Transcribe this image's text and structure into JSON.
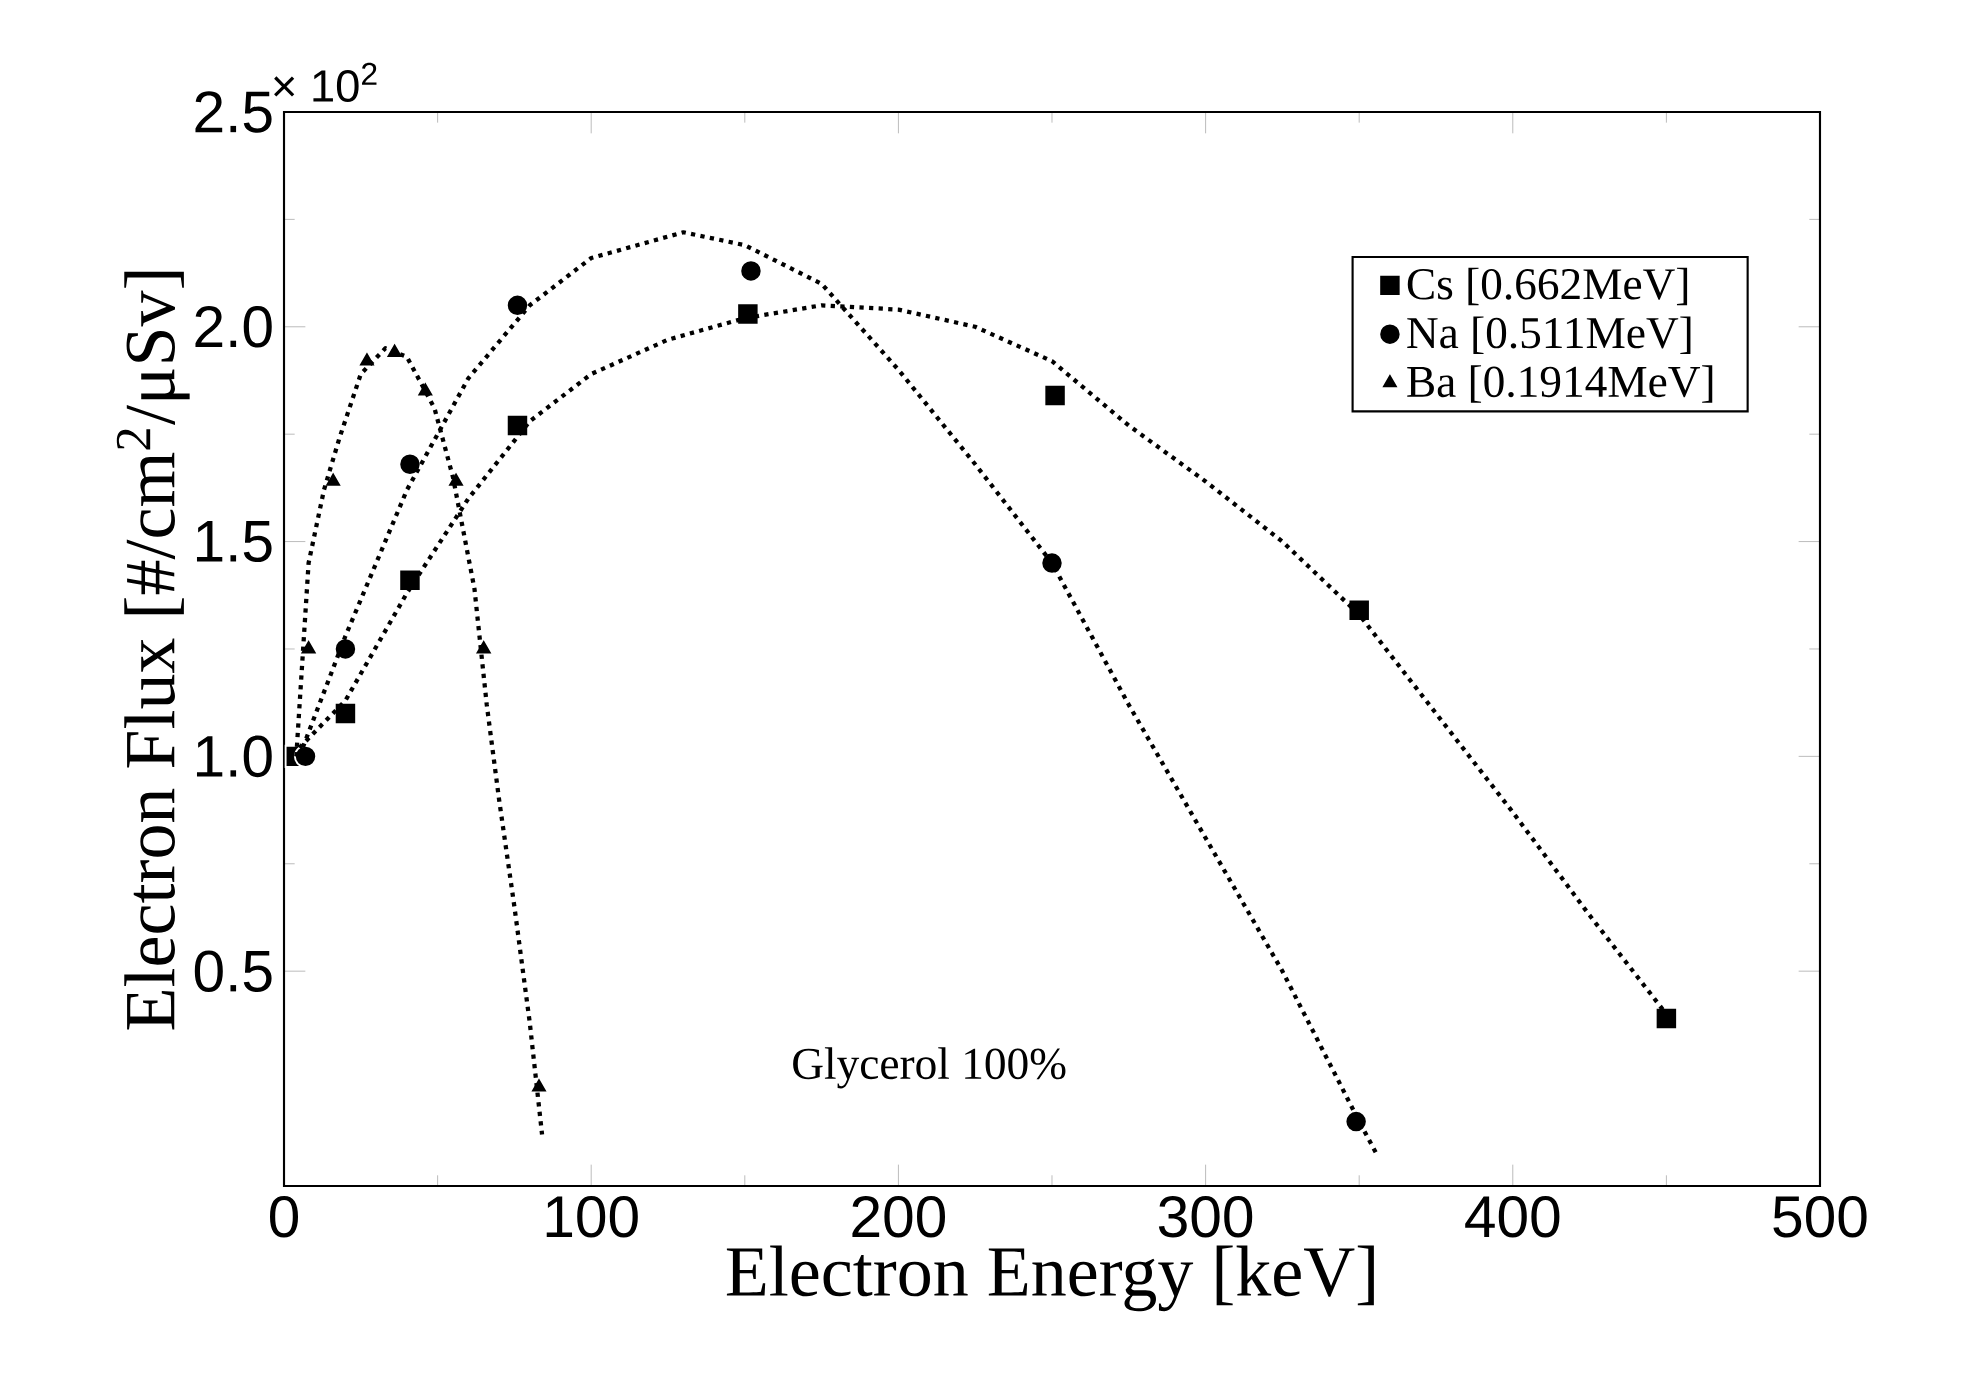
{
  "chart_data": {
    "type": "scatter",
    "xlabel": "Electron Energy [keV]",
    "ylabel": "Electron Flux [#/cm$^{2}$/μSv]",
    "annotations": [
      "Glycerol 100%",
      "× 10$^{2}$"
    ],
    "xlim": [
      0,
      500
    ],
    "xticks": [
      0,
      100,
      200,
      300,
      400,
      500
    ],
    "ylim": [
      0,
      2.5
    ],
    "yticks": [
      {
        "value": 0.5,
        "label": "0.5"
      },
      {
        "value": 1.0,
        "label": "1.0"
      },
      {
        "value": 1.5,
        "label": "1.5"
      },
      {
        "value": 2.0,
        "label": "2.0"
      },
      {
        "value": 2.5,
        "label": "2.5"
      }
    ],
    "grid": false,
    "legend": "top right",
    "series": [
      {
        "name": "Cs [0.662MeV]",
        "marker": "square",
        "color": "#000000",
        "x": [
          4,
          20,
          41,
          76,
          151,
          251,
          350,
          450
        ],
        "values": [
          1.0,
          1.1,
          1.41,
          1.77,
          2.03,
          1.84,
          1.34,
          0.39
        ]
      },
      {
        "name": "Na [0.511MeV]",
        "marker": "circle",
        "color": "#000000",
        "x": [
          7,
          20,
          41,
          76,
          152,
          250,
          349
        ],
        "values": [
          1.0,
          1.25,
          1.68,
          2.05,
          2.13,
          1.45,
          0.15
        ]
      },
      {
        "name": "Ba [0.1914MeV]",
        "marker": "triangle",
        "color": "#000000",
        "x": [
          8,
          16,
          27,
          36,
          46,
          56,
          65,
          83
        ],
        "values": [
          1.25,
          1.64,
          1.92,
          1.94,
          1.85,
          1.64,
          1.25,
          0.23
        ]
      },
      {
        "type": "line",
        "marker": "none",
        "line_style": "dotted",
        "color": "#000000",
        "x": [
          5,
          20,
          40,
          60,
          80,
          100,
          125,
          150,
          175,
          200,
          225,
          250,
          275,
          300,
          325,
          350,
          375,
          400,
          425,
          450
        ],
        "values": [
          1.02,
          1.13,
          1.38,
          1.6,
          1.78,
          1.89,
          1.97,
          2.02,
          2.05,
          2.04,
          2.0,
          1.92,
          1.77,
          1.64,
          1.5,
          1.33,
          1.1,
          0.87,
          0.63,
          0.4
        ]
      },
      {
        "type": "line",
        "marker": "none",
        "line_style": "dotted",
        "color": "#000000",
        "x": [
          5,
          20,
          40,
          60,
          80,
          100,
          130,
          150,
          175,
          200,
          225,
          250,
          275,
          300,
          325,
          350,
          356
        ],
        "values": [
          1.0,
          1.28,
          1.62,
          1.88,
          2.05,
          2.16,
          2.22,
          2.19,
          2.1,
          1.9,
          1.68,
          1.45,
          1.12,
          0.81,
          0.5,
          0.15,
          0.07
        ]
      },
      {
        "type": "line",
        "marker": "none",
        "line_style": "dotted",
        "color": "#000000",
        "x": [
          4,
          8,
          13,
          18,
          25,
          33,
          40,
          49,
          55,
          62,
          66,
          70,
          75,
          80,
          84
        ],
        "values": [
          1.0,
          1.45,
          1.62,
          1.74,
          1.89,
          1.95,
          1.93,
          1.81,
          1.65,
          1.39,
          1.12,
          0.9,
          0.65,
          0.38,
          0.12
        ]
      }
    ]
  }
}
